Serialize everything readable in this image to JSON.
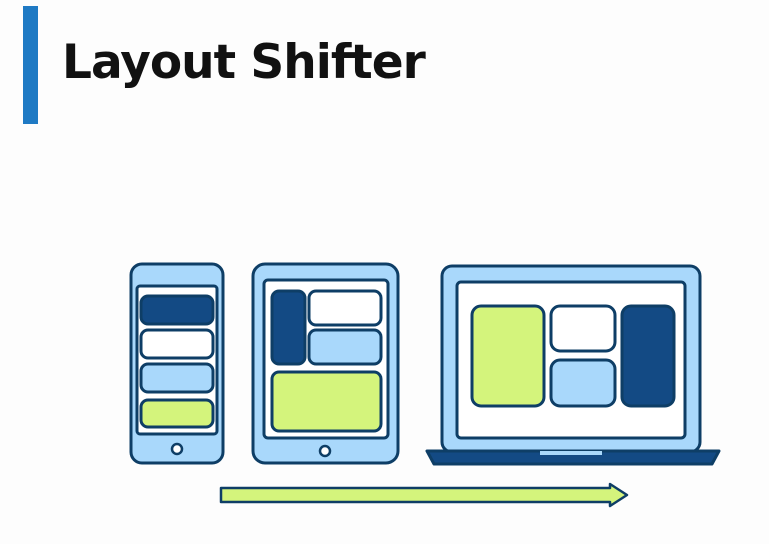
{
  "slide": {
    "title": "Layout Shifter"
  },
  "colors": {
    "accent": "#1f7ac4",
    "outline": "#0e3e66",
    "device_fill": "#a9d8fb",
    "screen_fill": "#ffffff",
    "block_dark": "#134a84",
    "block_light": "#a9d8fb",
    "block_green": "#d4f47c",
    "block_white": "#ffffff"
  },
  "icons": [
    "phone-icon",
    "tablet-icon",
    "laptop-icon",
    "arrow-right-icon"
  ]
}
